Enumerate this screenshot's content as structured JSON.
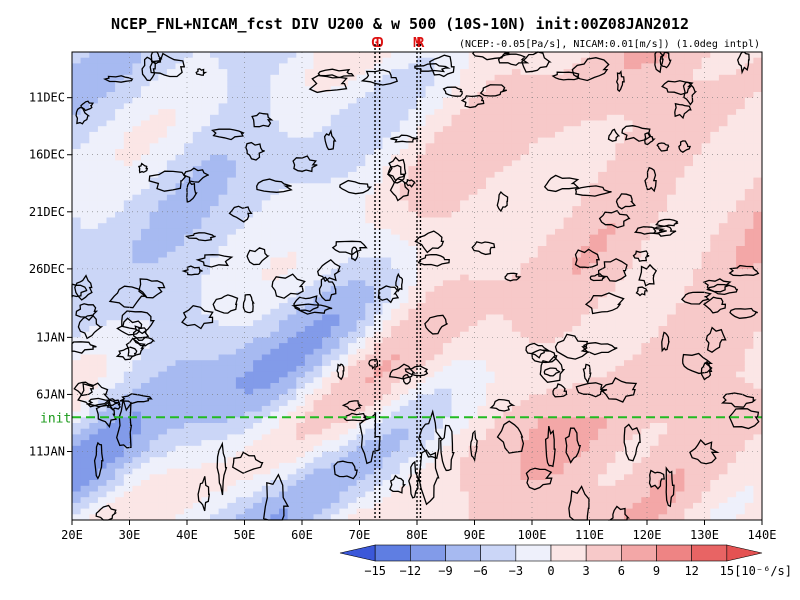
{
  "chart_data": {
    "type": "heatmap",
    "title": "NCEP_FNL+NICAM_fcst DIV U200 & w 500 (10S-10N) init:00Z08JAN2012",
    "subtitle": "(NCEP:-0.05[Pa/s], NICAM:0.01[m/s]) (1.0deg intpl)",
    "x_axis": {
      "range": [
        20,
        140
      ],
      "ticks": [
        20,
        30,
        40,
        50,
        60,
        70,
        80,
        90,
        100,
        110,
        120,
        130,
        140
      ],
      "tick_labels": [
        "20E",
        "30E",
        "40E",
        "50E",
        "60E",
        "70E",
        "80E",
        "90E",
        "100E",
        "110E",
        "120E",
        "130E",
        "140E"
      ]
    },
    "y_axis": {
      "range_days": [
        0,
        41
      ],
      "direction": "time increases downward",
      "ticks": [
        {
          "day": 4,
          "label": "11DEC"
        },
        {
          "day": 9,
          "label": "16DEC"
        },
        {
          "day": 14,
          "label": "21DEC"
        },
        {
          "day": 19,
          "label": "26DEC"
        },
        {
          "day": 25,
          "label": "1JAN"
        },
        {
          "day": 30,
          "label": "6JAN"
        },
        {
          "day": 35,
          "label": "11JAN"
        }
      ]
    },
    "init_line": {
      "day": 32,
      "label": "init",
      "color": "#22bb22"
    },
    "markers": [
      {
        "lon": 72.7,
        "label": "G"
      },
      {
        "lon": 73.5,
        "label": "D"
      },
      {
        "lon": 80.0,
        "label": "M"
      },
      {
        "lon": 80.6,
        "label": "R"
      }
    ],
    "colorbar": {
      "levels": [
        -15,
        -12,
        -9,
        -6,
        -3,
        0,
        3,
        6,
        9,
        12,
        15
      ],
      "labels": [
        "−15",
        "−12",
        "−9",
        "−6",
        "−3",
        "0",
        "3",
        "6",
        "9",
        "12",
        "15"
      ],
      "unit": "[10⁻⁶/s]",
      "colors": [
        "#3b58d9",
        "#5f7ee2",
        "#829be9",
        "#a7baf1",
        "#cbd6f7",
        "#eef0fb",
        "#fbe6e6",
        "#f7c9c9",
        "#f3a7a7",
        "#ee8484",
        "#e86464",
        "#e45252"
      ]
    },
    "contour_color": "#000000",
    "marker_color": "#dd1111"
  }
}
